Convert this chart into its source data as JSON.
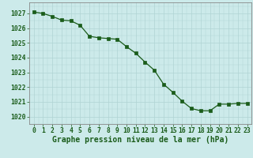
{
  "x": [
    0,
    1,
    2,
    3,
    4,
    5,
    6,
    7,
    8,
    9,
    10,
    11,
    12,
    13,
    14,
    15,
    16,
    17,
    18,
    19,
    20,
    21,
    22,
    23
  ],
  "y": [
    1027.1,
    1027.0,
    1026.8,
    1026.55,
    1026.5,
    1026.2,
    1025.45,
    1025.35,
    1025.3,
    1025.25,
    1024.75,
    1024.3,
    1023.7,
    1023.15,
    1022.2,
    1021.65,
    1021.05,
    1020.55,
    1020.4,
    1020.4,
    1020.85,
    1020.85,
    1020.9,
    1020.9
  ],
  "ylim": [
    1019.5,
    1027.75
  ],
  "xlim": [
    -0.5,
    23.5
  ],
  "yticks": [
    1020,
    1021,
    1022,
    1023,
    1024,
    1025,
    1026,
    1027
  ],
  "xticks": [
    0,
    1,
    2,
    3,
    4,
    5,
    6,
    7,
    8,
    9,
    10,
    11,
    12,
    13,
    14,
    15,
    16,
    17,
    18,
    19,
    20,
    21,
    22,
    23
  ],
  "xlabel": "Graphe pression niveau de la mer (hPa)",
  "line_color": "#1a5c1a",
  "marker_color": "#1a5c1a",
  "bg_color": "#cceaea",
  "grid_color": "#b0d4d4",
  "axis_color": "#555555",
  "tick_label_color": "#1a5c1a",
  "xlabel_color": "#1a5c1a",
  "xlabel_fontsize": 7.0,
  "tick_fontsize": 5.8
}
